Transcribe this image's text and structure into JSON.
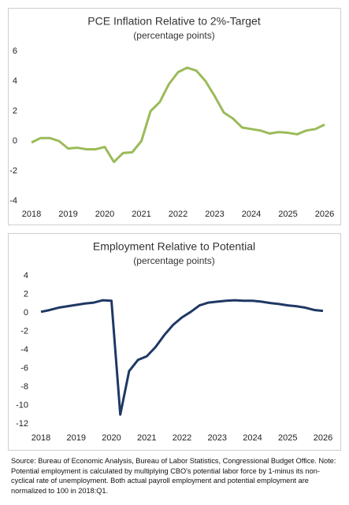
{
  "chart_data": [
    {
      "type": "line",
      "title": "PCE Inflation Relative to 2%-Target",
      "subtitle": "(percentage points)",
      "x": [
        2018,
        2018.25,
        2018.5,
        2018.75,
        2019,
        2019.25,
        2019.5,
        2019.75,
        2020,
        2020.25,
        2020.5,
        2020.75,
        2021,
        2021.25,
        2021.5,
        2021.75,
        2022,
        2022.25,
        2022.5,
        2022.75,
        2023,
        2023.25,
        2023.5,
        2023.75,
        2024,
        2024.25,
        2024.5,
        2024.75,
        2025,
        2025.25,
        2025.5,
        2025.75,
        2026
      ],
      "series": [
        {
          "color": "#9bbb59",
          "values": [
            -0.1,
            0.2,
            0.2,
            0.0,
            -0.5,
            -0.45,
            -0.55,
            -0.55,
            -0.4,
            -1.4,
            -0.8,
            -0.75,
            0.0,
            2.0,
            2.6,
            3.8,
            4.6,
            4.9,
            4.7,
            4.0,
            3.0,
            1.9,
            1.5,
            0.9,
            0.8,
            0.7,
            0.5,
            0.6,
            0.55,
            0.45,
            0.7,
            0.8,
            1.1
          ]
        }
      ],
      "xlim": [
        2018,
        2026
      ],
      "xticks": [
        2018,
        2019,
        2020,
        2021,
        2022,
        2023,
        2024,
        2025,
        2026
      ],
      "ylim": [
        -4,
        6
      ],
      "yticks": [
        -4,
        -2,
        0,
        2,
        4,
        6
      ]
    },
    {
      "type": "line",
      "title": "Employment Relative to Potential",
      "subtitle": "(percentage points)",
      "x": [
        2018,
        2018.25,
        2018.5,
        2018.75,
        2019,
        2019.25,
        2019.5,
        2019.75,
        2020,
        2020.25,
        2020.5,
        2020.75,
        2021,
        2021.25,
        2021.5,
        2021.75,
        2022,
        2022.25,
        2022.5,
        2022.75,
        2023,
        2023.25,
        2023.5,
        2023.75,
        2024,
        2024.25,
        2024.5,
        2024.75,
        2025,
        2025.25,
        2025.5,
        2025.75,
        2026
      ],
      "series": [
        {
          "color": "#1f3864",
          "values": [
            0.1,
            0.3,
            0.55,
            0.7,
            0.85,
            1.0,
            1.1,
            1.35,
            1.3,
            -11.0,
            -6.3,
            -5.1,
            -4.7,
            -3.7,
            -2.4,
            -1.3,
            -0.5,
            0.1,
            0.8,
            1.1,
            1.2,
            1.3,
            1.35,
            1.3,
            1.3,
            1.2,
            1.05,
            0.95,
            0.8,
            0.7,
            0.55,
            0.3,
            0.2
          ]
        }
      ],
      "xlim": [
        2018,
        2026
      ],
      "xticks": [
        2018,
        2019,
        2020,
        2021,
        2022,
        2023,
        2024,
        2025,
        2026
      ],
      "ylim": [
        -12,
        4
      ],
      "yticks": [
        -12,
        -10,
        -8,
        -6,
        -4,
        -2,
        0,
        2,
        4
      ]
    }
  ],
  "note": "Source: Bureau of Economic Analysis, Bureau of Labor Statistics, Congressional Budget Office. Note: Potential employment is calculated by multiplying CBO's potential labor force by 1-minus its non-cyclical rate of unemployment. Both actual payroll employment and potential employment are normalized to 100 in 2018:Q1."
}
